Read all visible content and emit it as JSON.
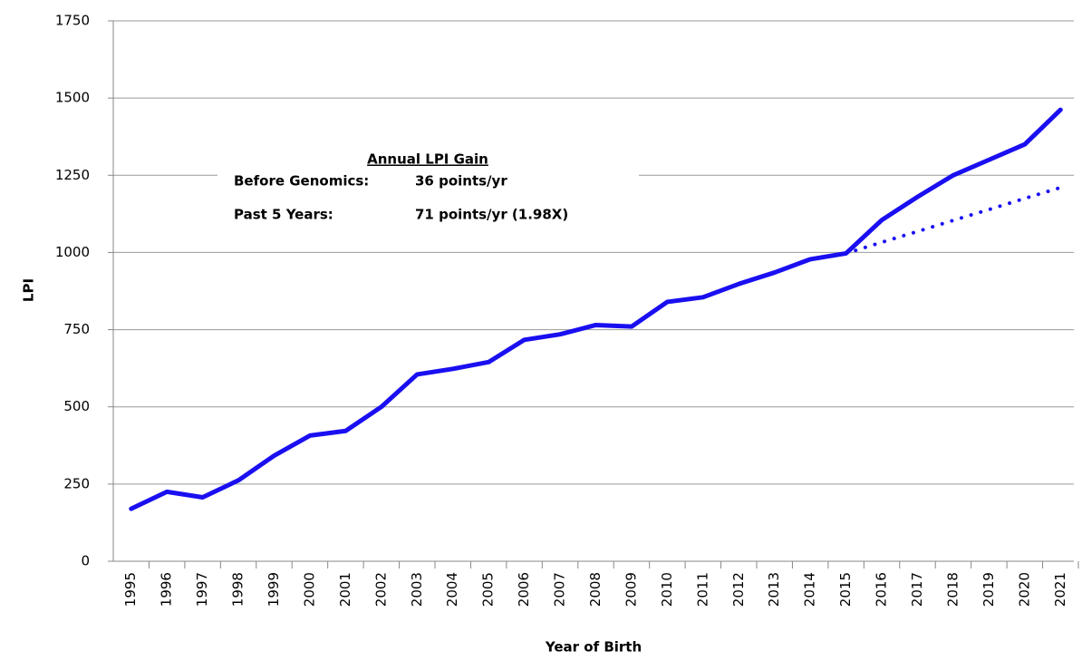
{
  "chart_data": {
    "type": "line",
    "x_label": "Year of Birth",
    "y_label": "LPI",
    "categories": [
      "1995",
      "1996",
      "1997",
      "1998",
      "1999",
      "2000",
      "2001",
      "2002",
      "2003",
      "2004",
      "2005",
      "2006",
      "2007",
      "2008",
      "2009",
      "2010",
      "2011",
      "2012",
      "2013",
      "2014",
      "2015",
      "2016",
      "2017",
      "2018",
      "2019",
      "2020",
      "2021"
    ],
    "series": [
      {
        "color": "#1a0ff0",
        "style": "solid",
        "values": [
          170,
          225,
          207,
          262,
          342,
          407,
          422,
          500,
          605,
          623,
          645,
          717,
          735,
          765,
          760,
          840,
          855,
          898,
          935,
          978,
          997,
          1105,
          1180,
          1250,
          1300,
          1350,
          1462
        ]
      },
      {
        "color": "#1a0ff0",
        "style": "dotted",
        "values": [
          null,
          null,
          null,
          null,
          null,
          null,
          null,
          null,
          null,
          null,
          null,
          null,
          null,
          null,
          null,
          null,
          null,
          null,
          null,
          null,
          997,
          1033,
          1068,
          1104,
          1139,
          1175,
          1210
        ]
      }
    ],
    "ylim": [
      0,
      1750
    ],
    "yticks": [
      0,
      250,
      500,
      750,
      1000,
      1250,
      1500,
      1750
    ],
    "grid": true,
    "annotation": {
      "title": "Annual LPI Gain",
      "rows": [
        [
          "Before Genomics:",
          "36 points/yr"
        ],
        [
          "Past 5 Years:",
          "71 points/yr (1.98X)"
        ]
      ]
    }
  }
}
